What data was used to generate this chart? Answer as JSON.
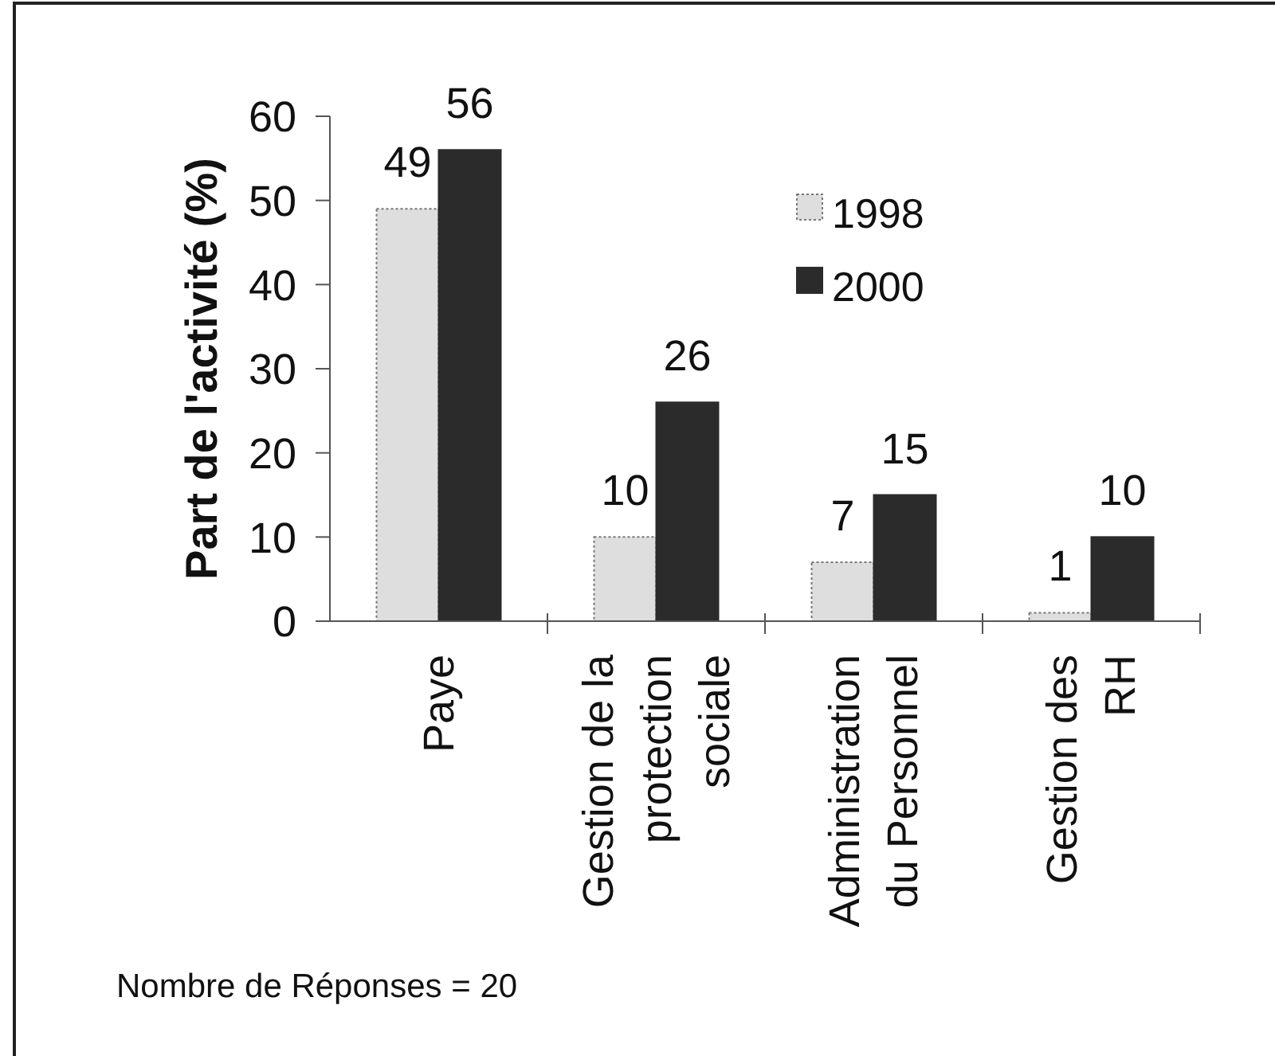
{
  "chart_data": {
    "type": "bar",
    "ylabel": "Part de l'activité (%)",
    "categories": [
      "Paye",
      "Gestion de la protection sociale",
      "Administration du Personnel",
      "Gestion des RH"
    ],
    "series": [
      {
        "name": "1998",
        "color": "#dedede",
        "values": [
          49,
          10,
          7,
          1
        ]
      },
      {
        "name": "2000",
        "color": "#2b2b2b",
        "values": [
          56,
          26,
          15,
          10
        ]
      }
    ],
    "ylim": [
      0,
      60
    ],
    "yticks": [
      0,
      10,
      20,
      30,
      40,
      50,
      60
    ],
    "data_labels": true,
    "legend": "top right",
    "annotations": [
      "Nombre de Réponses = 20"
    ]
  }
}
